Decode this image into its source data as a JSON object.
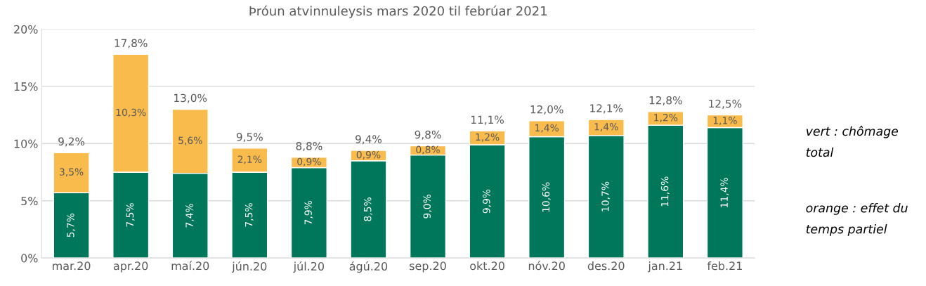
{
  "chart_data": {
    "type": "bar",
    "title": "Þróun atvinnuleysis mars 2020 til febrúar 2021",
    "categories": [
      "mar.20",
      "apr.20",
      "maí.20",
      "jún.20",
      "júl.20",
      "ágú.20",
      "sep.20",
      "okt.20",
      "nóv.20",
      "des.20",
      "jan.21",
      "feb.21"
    ],
    "stacked": true,
    "series": [
      {
        "color": "#00775a",
        "values": [
          5.7,
          7.5,
          7.4,
          7.5,
          7.9,
          8.5,
          9.0,
          9.9,
          10.6,
          10.7,
          11.6,
          11.4
        ],
        "value_labels": [
          "5,7%",
          "7,5%",
          "7,4%",
          "7,5%",
          "7,9%",
          "8,5%",
          "9,0%",
          "9,9%",
          "10,6%",
          "10,7%",
          "11,6%",
          "11,4%"
        ]
      },
      {
        "color": "#f9bb4c",
        "values": [
          3.5,
          10.3,
          5.6,
          2.1,
          0.9,
          0.9,
          0.8,
          1.2,
          1.4,
          1.4,
          1.2,
          1.1
        ],
        "value_labels": [
          "3,5%",
          "10,3%",
          "5,6%",
          "2,1%",
          "0,9%",
          "0,9%",
          "0,8%",
          "1,2%",
          "1,4%",
          "1,4%",
          "1,2%",
          "1,1%"
        ]
      }
    ],
    "totals": [
      "9,2%",
      "17,8%",
      "13,0%",
      "9,5%",
      "8,8%",
      "9,4%",
      "9,8%",
      "11,1%",
      "12,0%",
      "12,1%",
      "12,8%",
      "12,5%"
    ],
    "ylim": [
      0,
      20
    ],
    "yticks": [
      {
        "value": 0,
        "label": "0%"
      },
      {
        "value": 5,
        "label": "5%"
      },
      {
        "value": 10,
        "label": "10%"
      },
      {
        "value": 15,
        "label": "15%"
      },
      {
        "value": 20,
        "label": "20%"
      }
    ],
    "grid": "y",
    "annotations": [
      "vert : chômage\ntotal",
      "orange : effet du\ntemps partiel"
    ]
  }
}
